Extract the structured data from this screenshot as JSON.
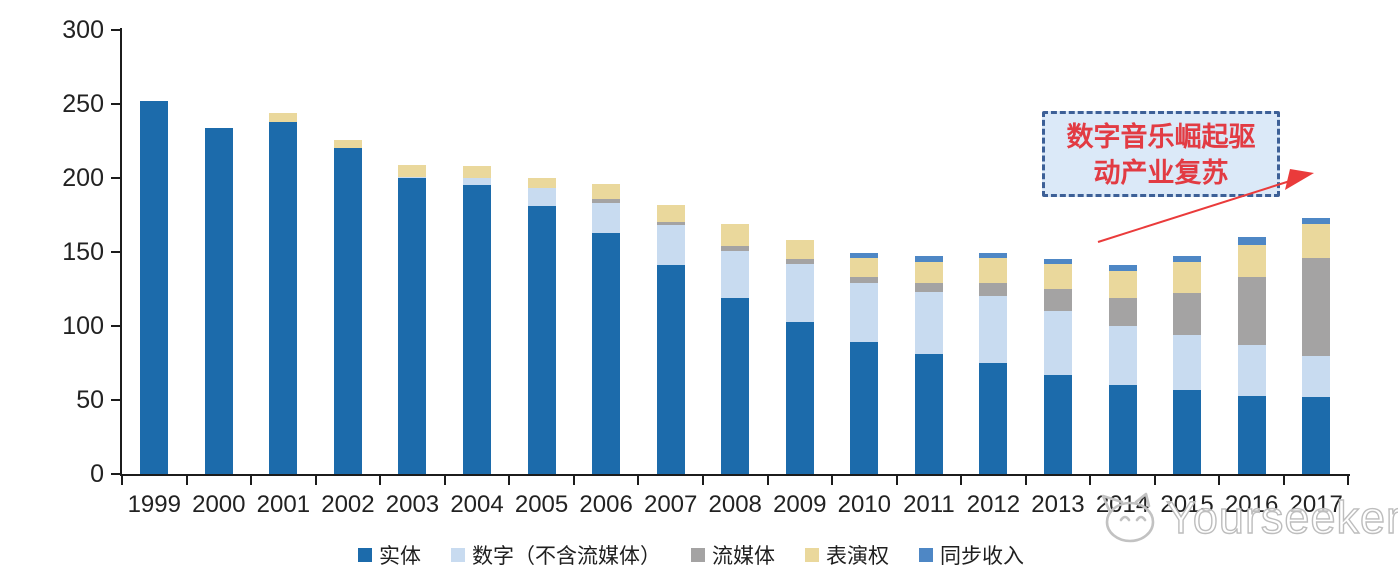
{
  "chart_data": {
    "type": "bar",
    "stacked": true,
    "title": "",
    "xlabel": "",
    "ylabel": "",
    "ylim": [
      0,
      300
    ],
    "y_ticks": [
      300,
      250,
      200,
      150,
      100,
      50,
      0
    ],
    "grid": false,
    "legend_position": "bottom",
    "categories": [
      "1999",
      "2000",
      "2001",
      "2002",
      "2003",
      "2004",
      "2005",
      "2006",
      "2007",
      "2008",
      "2009",
      "2010",
      "2011",
      "2012",
      "2013",
      "2014",
      "2015",
      "2016",
      "2017"
    ],
    "series": [
      {
        "name": "实体",
        "color": "#1c6bab",
        "values": [
          252,
          234,
          238,
          220,
          200,
          195,
          181,
          163,
          141,
          119,
          103,
          89,
          81,
          75,
          67,
          60,
          57,
          53,
          52
        ]
      },
      {
        "name": "数字（不含流媒体）",
        "color": "#c8dbf0",
        "values": [
          0,
          0,
          0,
          0,
          1,
          5,
          12,
          20,
          27,
          32,
          39,
          40,
          42,
          45,
          43,
          40,
          37,
          34,
          28
        ]
      },
      {
        "name": "流媒体",
        "color": "#a4a3a3",
        "values": [
          0,
          0,
          0,
          0,
          0,
          0,
          0,
          3,
          2,
          3,
          3,
          4,
          6,
          9,
          15,
          19,
          28,
          46,
          66
        ]
      },
      {
        "name": "表演权",
        "color": "#ead89c",
        "values": [
          0,
          0,
          6,
          6,
          8,
          8,
          7,
          10,
          12,
          15,
          13,
          13,
          14,
          17,
          17,
          18,
          21,
          22,
          23
        ]
      },
      {
        "name": "同步收入",
        "color": "#4e87c5",
        "values": [
          0,
          0,
          0,
          0,
          0,
          0,
          0,
          0,
          0,
          0,
          0,
          3,
          4,
          3,
          3,
          4,
          4,
          5,
          4
        ]
      }
    ]
  },
  "annotation": {
    "line1": "数字音乐崛起驱",
    "line2": "动产业复苏"
  },
  "annotation_colors": {
    "border": "#3d6097",
    "fill": "#dbe9f8",
    "text": "#e23b43",
    "arrow": "#ea3b3b"
  },
  "watermark": {
    "brand": "Yourseeker"
  }
}
